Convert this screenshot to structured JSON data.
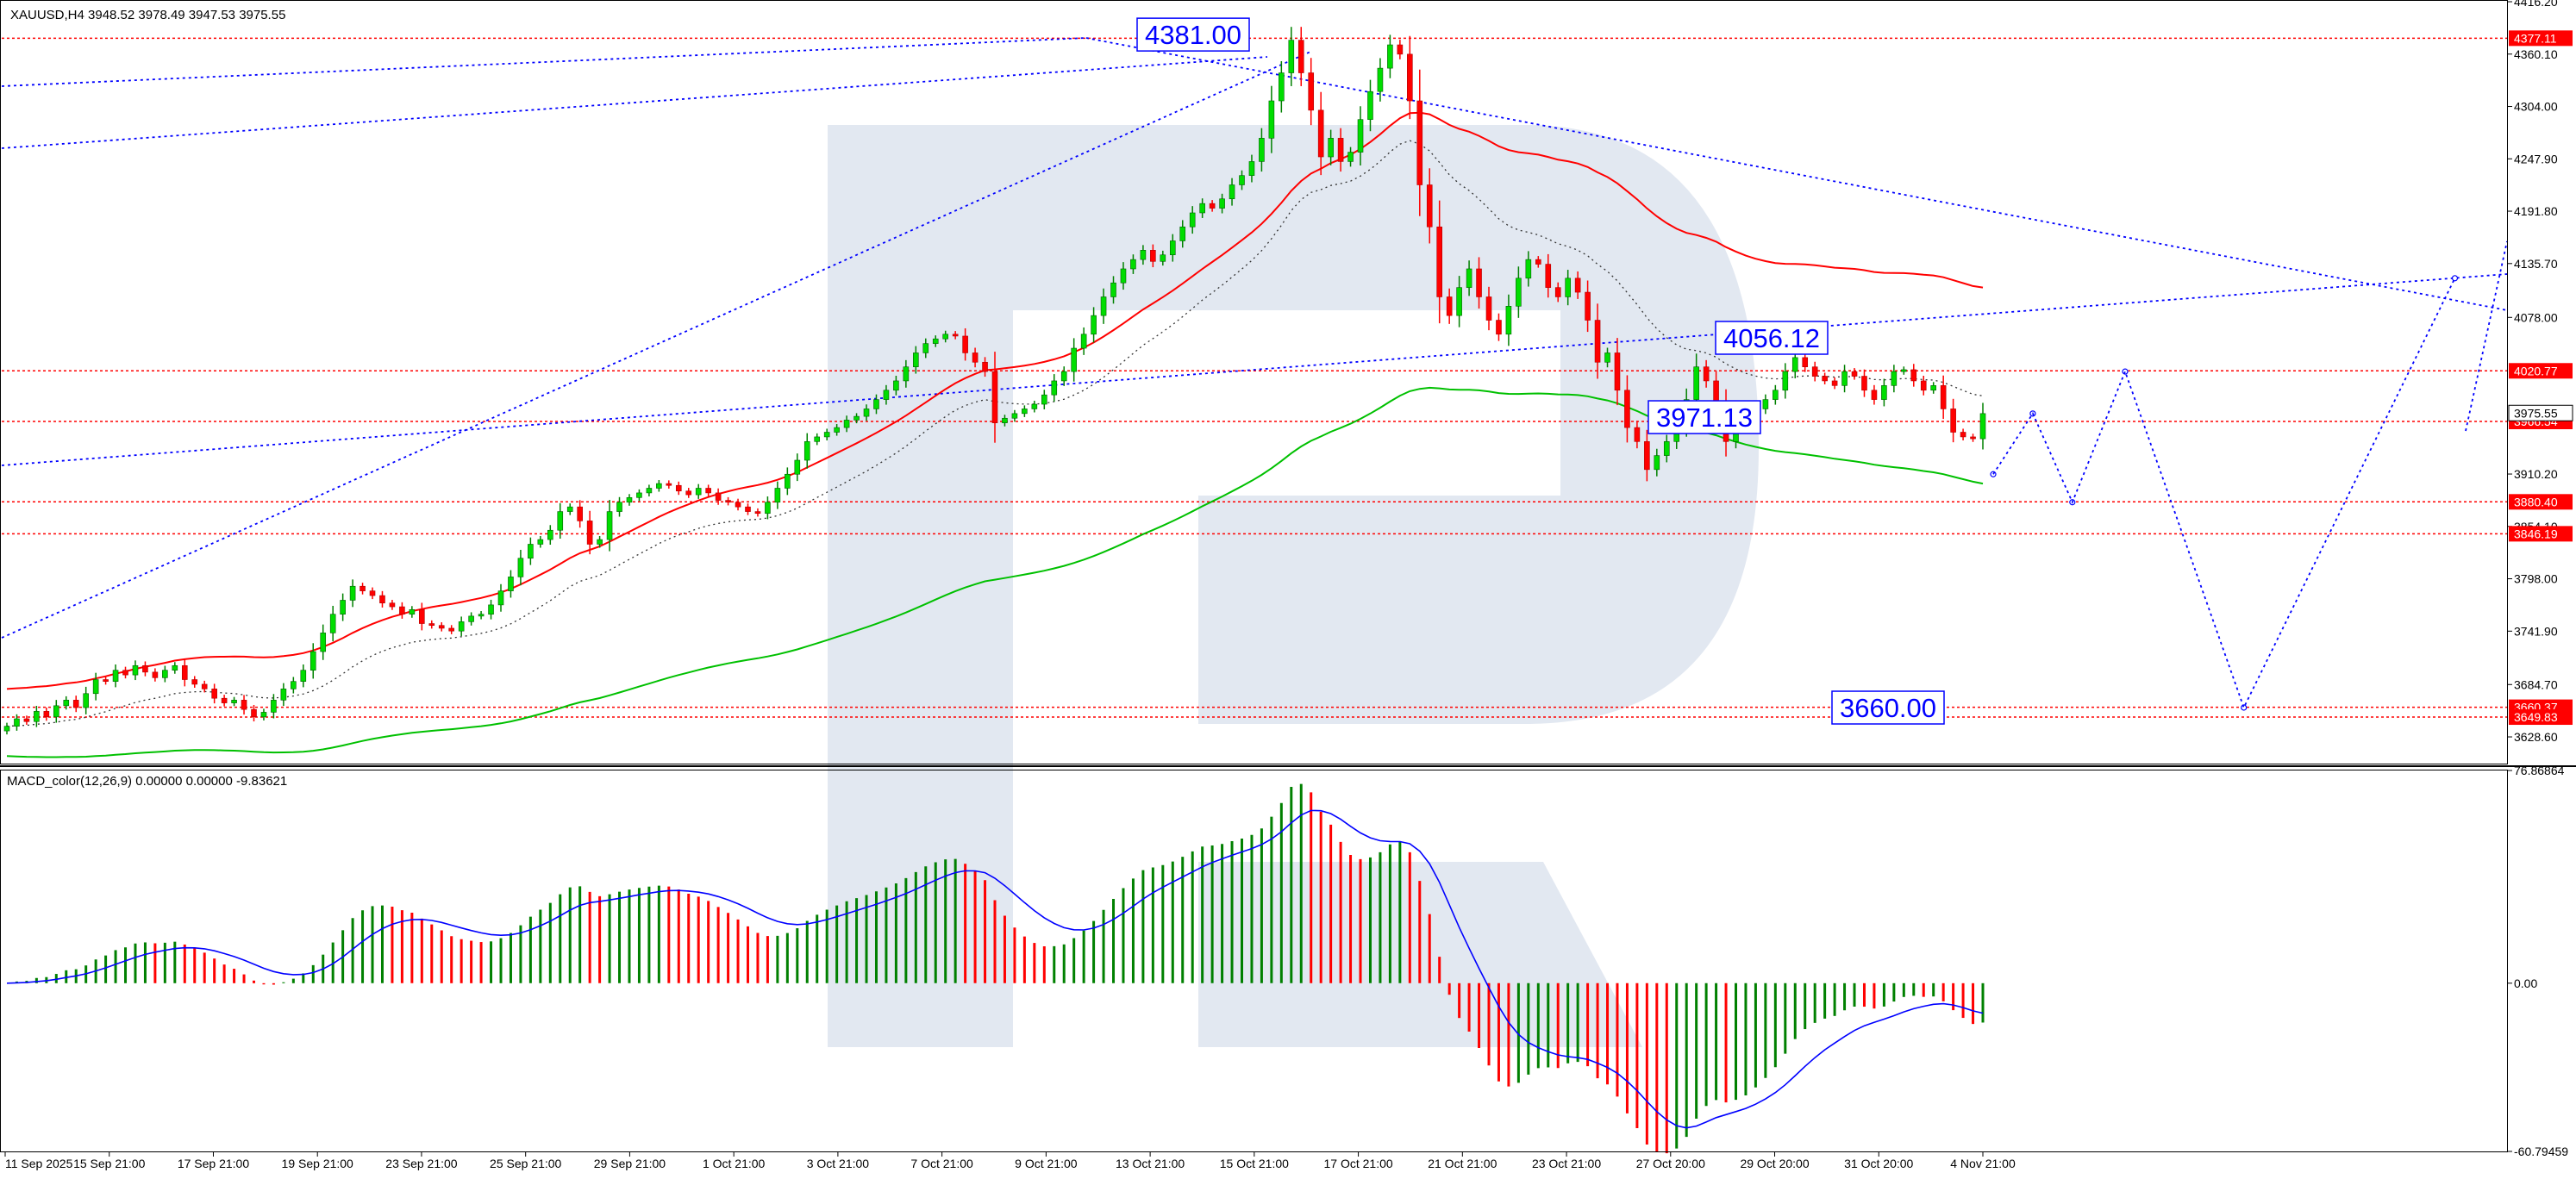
{
  "header": {
    "symbol_line": "XAUUSD,H4  3948.52 3978.49 3947.53 3975.55"
  },
  "macd_panel": {
    "label": "MACD_color(12,26,9) 0.00000 0.00000 -9.83621",
    "scale_top": "76.86864",
    "scale_zero": "0.00",
    "scale_bottom": "-60.79459"
  },
  "colors": {
    "bull": "#008000",
    "bear": "#ff0000",
    "ma_red": "#ff0000",
    "ma_green": "#00c000",
    "trendline": "#0000ff",
    "level_line": "#ff0000",
    "price_tag_bg": "#ff0000",
    "current_tag_bg": "#ffffff",
    "macd_signal": "#0000ff",
    "watermark": "#d8e0ec"
  },
  "chart_data": {
    "type": "candlestick",
    "symbol": "XAUUSD",
    "timeframe": "H4",
    "ohlc_header": {
      "open": 3948.52,
      "high": 3978.49,
      "low": 3947.53,
      "close": 3975.55
    },
    "ylim": [
      3600,
      4416.2
    ],
    "y_ticks": [
      "4416.20",
      "4360.10",
      "4304.00",
      "4247.90",
      "4191.80",
      "4135.70",
      "4078.00",
      "3910.20",
      "3854.10",
      "3798.00",
      "3741.90",
      "3684.70",
      "3628.60"
    ],
    "x_ticks": [
      "11 Sep 2025",
      "15 Sep 21:00",
      "17 Sep 21:00",
      "19 Sep 21:00",
      "23 Sep 21:00",
      "25 Sep 21:00",
      "29 Sep 21:00",
      "1 Oct 21:00",
      "3 Oct 21:00",
      "7 Oct 21:00",
      "9 Oct 21:00",
      "13 Oct 21:00",
      "15 Oct 21:00",
      "17 Oct 21:00",
      "21 Oct 21:00",
      "23 Oct 21:00",
      "27 Oct 20:00",
      "29 Oct 20:00",
      "31 Oct 20:00",
      "4 Nov 21:00"
    ],
    "price_levels": [
      {
        "value": 4377.11,
        "label": "4377.11"
      },
      {
        "value": 4020.77,
        "label": "4020.77"
      },
      {
        "value": 3966.54,
        "label": "3966.54"
      },
      {
        "value": 3880.4,
        "label": "3880.40"
      },
      {
        "value": 3846.19,
        "label": "3846.19"
      },
      {
        "value": 3660.37,
        "label": "3660.37"
      },
      {
        "value": 3649.83,
        "label": "3649.83"
      }
    ],
    "current_price": {
      "value": 3975.55,
      "label": "3975.55"
    },
    "annotations": [
      {
        "text": "4381.00",
        "price": 4381.0
      },
      {
        "text": "4056.12",
        "price": 4056.12
      },
      {
        "text": "3971.13",
        "price": 3971.13
      },
      {
        "text": "3660.00",
        "price": 3660.0
      }
    ],
    "closes": [
      3640,
      3648,
      3645,
      3656,
      3650,
      3662,
      3668,
      3660,
      3675,
      3690,
      3688,
      3700,
      3695,
      3705,
      3698,
      3692,
      3700,
      3705,
      3690,
      3685,
      3680,
      3670,
      3665,
      3668,
      3658,
      3650,
      3655,
      3668,
      3680,
      3688,
      3700,
      3720,
      3740,
      3760,
      3775,
      3790,
      3785,
      3780,
      3772,
      3768,
      3760,
      3765,
      3750,
      3748,
      3745,
      3742,
      3752,
      3758,
      3760,
      3770,
      3785,
      3800,
      3820,
      3835,
      3840,
      3850,
      3870,
      3875,
      3860,
      3835,
      3840,
      3870,
      3880,
      3885,
      3890,
      3895,
      3900,
      3898,
      3892,
      3888,
      3895,
      3890,
      3882,
      3880,
      3875,
      3870,
      3868,
      3880,
      3895,
      3910,
      3925,
      3945,
      3950,
      3955,
      3960,
      3968,
      3972,
      3980,
      3990,
      4000,
      4010,
      4025,
      4040,
      4050,
      4055,
      4060,
      4058,
      4040,
      4030,
      4020,
      3965,
      3970,
      3975,
      3980,
      3985,
      3995,
      4010,
      4020,
      4045,
      4060,
      4080,
      4100,
      4115,
      4130,
      4140,
      4150,
      4138,
      4145,
      4160,
      4175,
      4190,
      4200,
      4195,
      4205,
      4220,
      4230,
      4245,
      4270,
      4310,
      4340,
      4375,
      4340,
      4300,
      4250,
      4270,
      4245,
      4255,
      4290,
      4320,
      4345,
      4370,
      4360,
      4310,
      4220,
      4175,
      4100,
      4080,
      4110,
      4130,
      4100,
      4075,
      4060,
      4090,
      4120,
      4140,
      4135,
      4110,
      4100,
      4120,
      4105,
      4075,
      4030,
      4040,
      4000,
      3960,
      3945,
      3915,
      3930,
      3945,
      3962,
      3990,
      4025,
      4010,
      3985,
      3945,
      3960,
      3965,
      3980,
      3990,
      4000,
      4020,
      4035,
      4025,
      4015,
      4010,
      4005,
      4020,
      4015,
      4000,
      3990,
      4005,
      4020,
      4022,
      4010,
      4000,
      4005,
      3980,
      3955,
      3950,
      3948,
      3975
    ],
    "ma_red": {
      "start": 3680,
      "end": 4110
    },
    "ma_green": {
      "start": 3608,
      "end": 3900
    },
    "forecast": [
      {
        "bar_offset": 0,
        "price": 3910
      },
      {
        "bar_offset": 6,
        "price": 3975
      },
      {
        "bar_offset": 12,
        "price": 3880
      },
      {
        "bar_offset": 20,
        "price": 4020
      },
      {
        "bar_offset": 38,
        "price": 3660
      },
      {
        "bar_offset": 70,
        "price": 4120
      }
    ],
    "macd": {
      "params": "12,26,9",
      "ylim": [
        -60.79459,
        76.86864
      ],
      "signal_last": -9.83621
    }
  }
}
